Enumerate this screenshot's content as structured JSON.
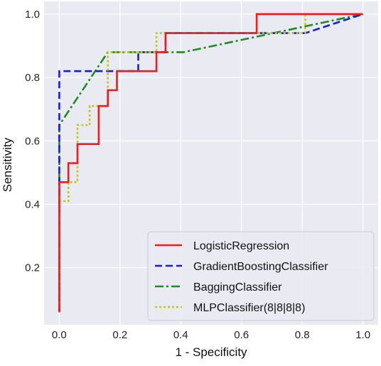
{
  "chart_data": {
    "type": "line",
    "title": "",
    "xlabel": "1 - Specificity",
    "ylabel": "Sensitivity",
    "xlim": [
      -0.05,
      1.05
    ],
    "ylim": [
      0.02,
      1.04
    ],
    "xticks": [
      0.0,
      0.2,
      0.4,
      0.6,
      0.8,
      1.0
    ],
    "xtick_labels": [
      "0.0",
      "0.2",
      "0.4",
      "0.6",
      "0.8",
      "1.0"
    ],
    "yticks": [
      0.2,
      0.4,
      0.6,
      0.8,
      1.0
    ],
    "ytick_labels": [
      "0.2",
      "0.4",
      "0.6",
      "0.8",
      "1.0"
    ],
    "grid": true,
    "background": "#eaeaf2",
    "legend_position": "bottom-right",
    "series": [
      {
        "name": "LogisticRegression",
        "color": "#ee1c1c",
        "dash": "solid",
        "x": [
          0,
          0,
          0.03,
          0.03,
          0.06,
          0.06,
          0.13,
          0.13,
          0.16,
          0.16,
          0.19,
          0.19,
          0.32,
          0.32,
          0.35,
          0.35,
          0.65,
          0.65,
          1.0
        ],
        "y": [
          0.06,
          0.47,
          0.47,
          0.53,
          0.53,
          0.59,
          0.59,
          0.71,
          0.71,
          0.76,
          0.76,
          0.82,
          0.82,
          0.88,
          0.88,
          0.94,
          0.94,
          1.0,
          1.0
        ]
      },
      {
        "name": "GradientBoostingClassifier",
        "color": "#1a1ae8",
        "dash": "dashed",
        "x": [
          0,
          0,
          0.26,
          0.26,
          0.35,
          0.35,
          0.81,
          1.0
        ],
        "y": [
          0.06,
          0.82,
          0.82,
          0.88,
          0.88,
          0.94,
          0.94,
          1.0
        ]
      },
      {
        "name": "BaggingClassifier",
        "color": "#1e8c1e",
        "dash": "dashdot",
        "x": [
          0,
          0,
          0.16,
          0.32,
          0.41,
          1.0
        ],
        "y": [
          0.06,
          0.65,
          0.88,
          0.88,
          0.88,
          1.0
        ]
      },
      {
        "name": "MLPClassifier(8|8|8|8)",
        "color": "#c4c41c",
        "dash": "dotted",
        "x": [
          0,
          0,
          0.03,
          0.03,
          0.06,
          0.06,
          0.1,
          0.1,
          0.16,
          0.16,
          0.19,
          0.19,
          0.32,
          0.32,
          0.81,
          0.81,
          1.0
        ],
        "y": [
          0.06,
          0.41,
          0.41,
          0.47,
          0.47,
          0.65,
          0.65,
          0.71,
          0.71,
          0.88,
          0.88,
          0.88,
          0.88,
          0.94,
          0.94,
          1.0,
          1.0
        ]
      }
    ]
  }
}
